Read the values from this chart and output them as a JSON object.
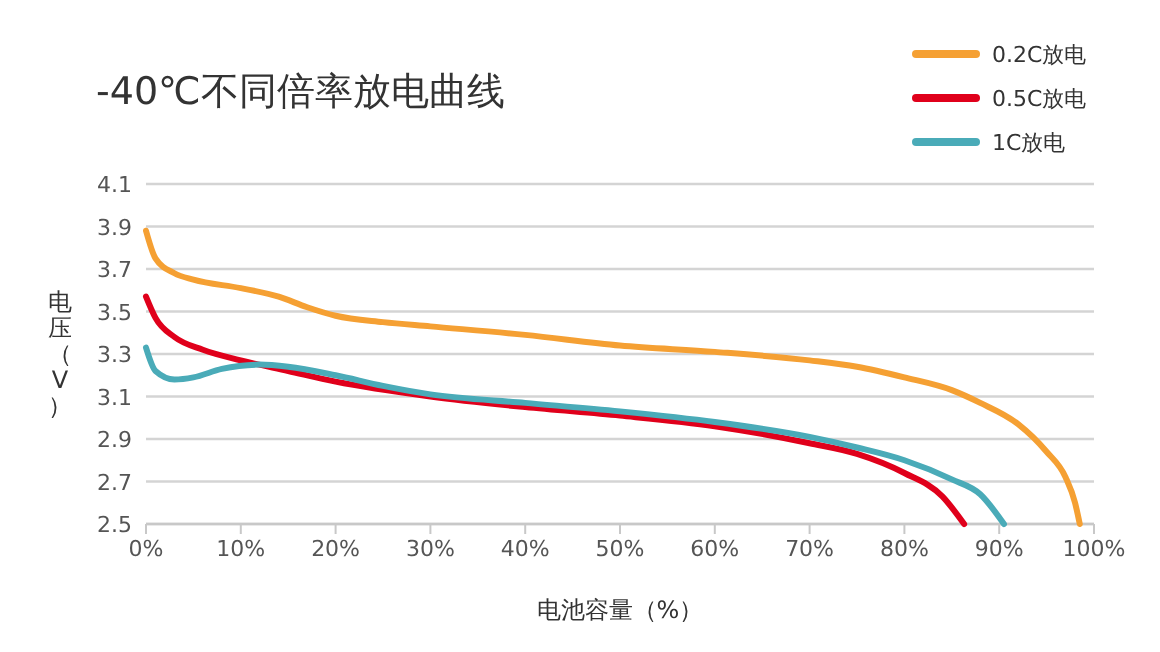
{
  "chart_data": {
    "type": "line",
    "title": "-40℃不同倍率放电曲线",
    "xlabel": "电池容量（%）",
    "ylabel": "电压（V）",
    "xlim": [
      0,
      100
    ],
    "ylim": [
      2.5,
      4.1
    ],
    "xticks": [
      {
        "value": 0,
        "label": "0%"
      },
      {
        "value": 10,
        "label": "10%"
      },
      {
        "value": 20,
        "label": "20%"
      },
      {
        "value": 30,
        "label": "30%"
      },
      {
        "value": 40,
        "label": "40%"
      },
      {
        "value": 50,
        "label": "50%"
      },
      {
        "value": 60,
        "label": "60%"
      },
      {
        "value": 70,
        "label": "70%"
      },
      {
        "value": 80,
        "label": "80%"
      },
      {
        "value": 90,
        "label": "90%"
      },
      {
        "value": 100,
        "label": "100%"
      }
    ],
    "yticks": [
      2.5,
      2.7,
      2.9,
      3.1,
      3.3,
      3.5,
      3.7,
      3.9,
      4.1
    ],
    "grid": "y",
    "legend": "top right",
    "marker": "none",
    "line_style": "solid",
    "series": [
      {
        "name": "0.2C放电",
        "color": "#f5a033",
        "x": [
          0,
          1,
          3,
          5,
          10,
          14,
          17,
          20,
          25,
          30,
          40,
          50,
          60,
          70,
          75,
          80,
          85,
          88,
          92,
          95,
          97,
          98,
          98.5
        ],
        "values": [
          3.88,
          3.75,
          3.68,
          3.65,
          3.61,
          3.57,
          3.52,
          3.48,
          3.45,
          3.43,
          3.39,
          3.34,
          3.31,
          3.27,
          3.24,
          3.19,
          3.13,
          3.07,
          2.97,
          2.84,
          2.72,
          2.6,
          2.5
        ]
      },
      {
        "name": "0.5C放电",
        "color": "#e0001b",
        "x": [
          0,
          1,
          3,
          6,
          10,
          15,
          20,
          30,
          40,
          50,
          60,
          70,
          75,
          80,
          84,
          86.3
        ],
        "values": [
          3.57,
          3.47,
          3.38,
          3.32,
          3.27,
          3.22,
          3.17,
          3.1,
          3.05,
          3.01,
          2.96,
          2.88,
          2.83,
          2.74,
          2.63,
          2.5
        ]
      },
      {
        "name": "1C放电",
        "color": "#4aabb8",
        "x": [
          0,
          1,
          3,
          5,
          8,
          12,
          15,
          20,
          25,
          30,
          40,
          50,
          60,
          70,
          75,
          80,
          85,
          88,
          90.5
        ],
        "values": [
          3.33,
          3.22,
          3.18,
          3.19,
          3.23,
          3.25,
          3.24,
          3.2,
          3.15,
          3.11,
          3.07,
          3.03,
          2.98,
          2.91,
          2.86,
          2.8,
          2.71,
          2.64,
          2.5
        ]
      }
    ]
  }
}
